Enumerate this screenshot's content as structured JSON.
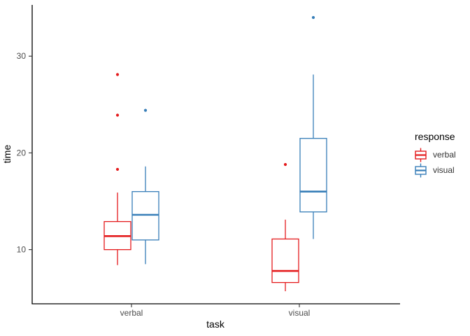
{
  "chart_data": {
    "type": "boxplot",
    "title": "",
    "xlabel": "task",
    "ylabel": "time",
    "categories": [
      "verbal",
      "visual"
    ],
    "y_ticks": [
      10,
      20,
      30
    ],
    "ylim": [
      4.4,
      35.3
    ],
    "grid": false,
    "panel_background": "#ffffff",
    "legend": {
      "title": "response",
      "position": "right",
      "entries": [
        {
          "label": "verbal",
          "color": "#E41A1C"
        },
        {
          "label": "visual",
          "color": "#377EB8"
        }
      ]
    },
    "series": [
      {
        "name": "verbal",
        "color": "#E41A1C",
        "boxes": [
          {
            "category": "verbal",
            "whisker_low": 8.4,
            "q1": 10.0,
            "median": 11.4,
            "q3": 12.9,
            "whisker_high": 15.9,
            "outliers": [
              18.3,
              23.9,
              28.1
            ]
          },
          {
            "category": "visual",
            "whisker_low": 5.7,
            "q1": 6.6,
            "median": 7.8,
            "q3": 11.1,
            "whisker_high": 13.1,
            "outliers": [
              18.8
            ]
          }
        ]
      },
      {
        "name": "visual",
        "color": "#377EB8",
        "boxes": [
          {
            "category": "verbal",
            "whisker_low": 8.5,
            "q1": 11.0,
            "median": 13.6,
            "q3": 16.0,
            "whisker_high": 18.6,
            "outliers": [
              24.4
            ]
          },
          {
            "category": "visual",
            "whisker_low": 11.1,
            "q1": 13.9,
            "median": 16.0,
            "q3": 21.5,
            "whisker_high": 28.1,
            "outliers": [
              34.0
            ]
          }
        ]
      }
    ],
    "colors": {
      "axis": "#000000",
      "tick": "#333333",
      "tick_label": "#4D4D4D",
      "box_fill": "#ffffff"
    }
  }
}
